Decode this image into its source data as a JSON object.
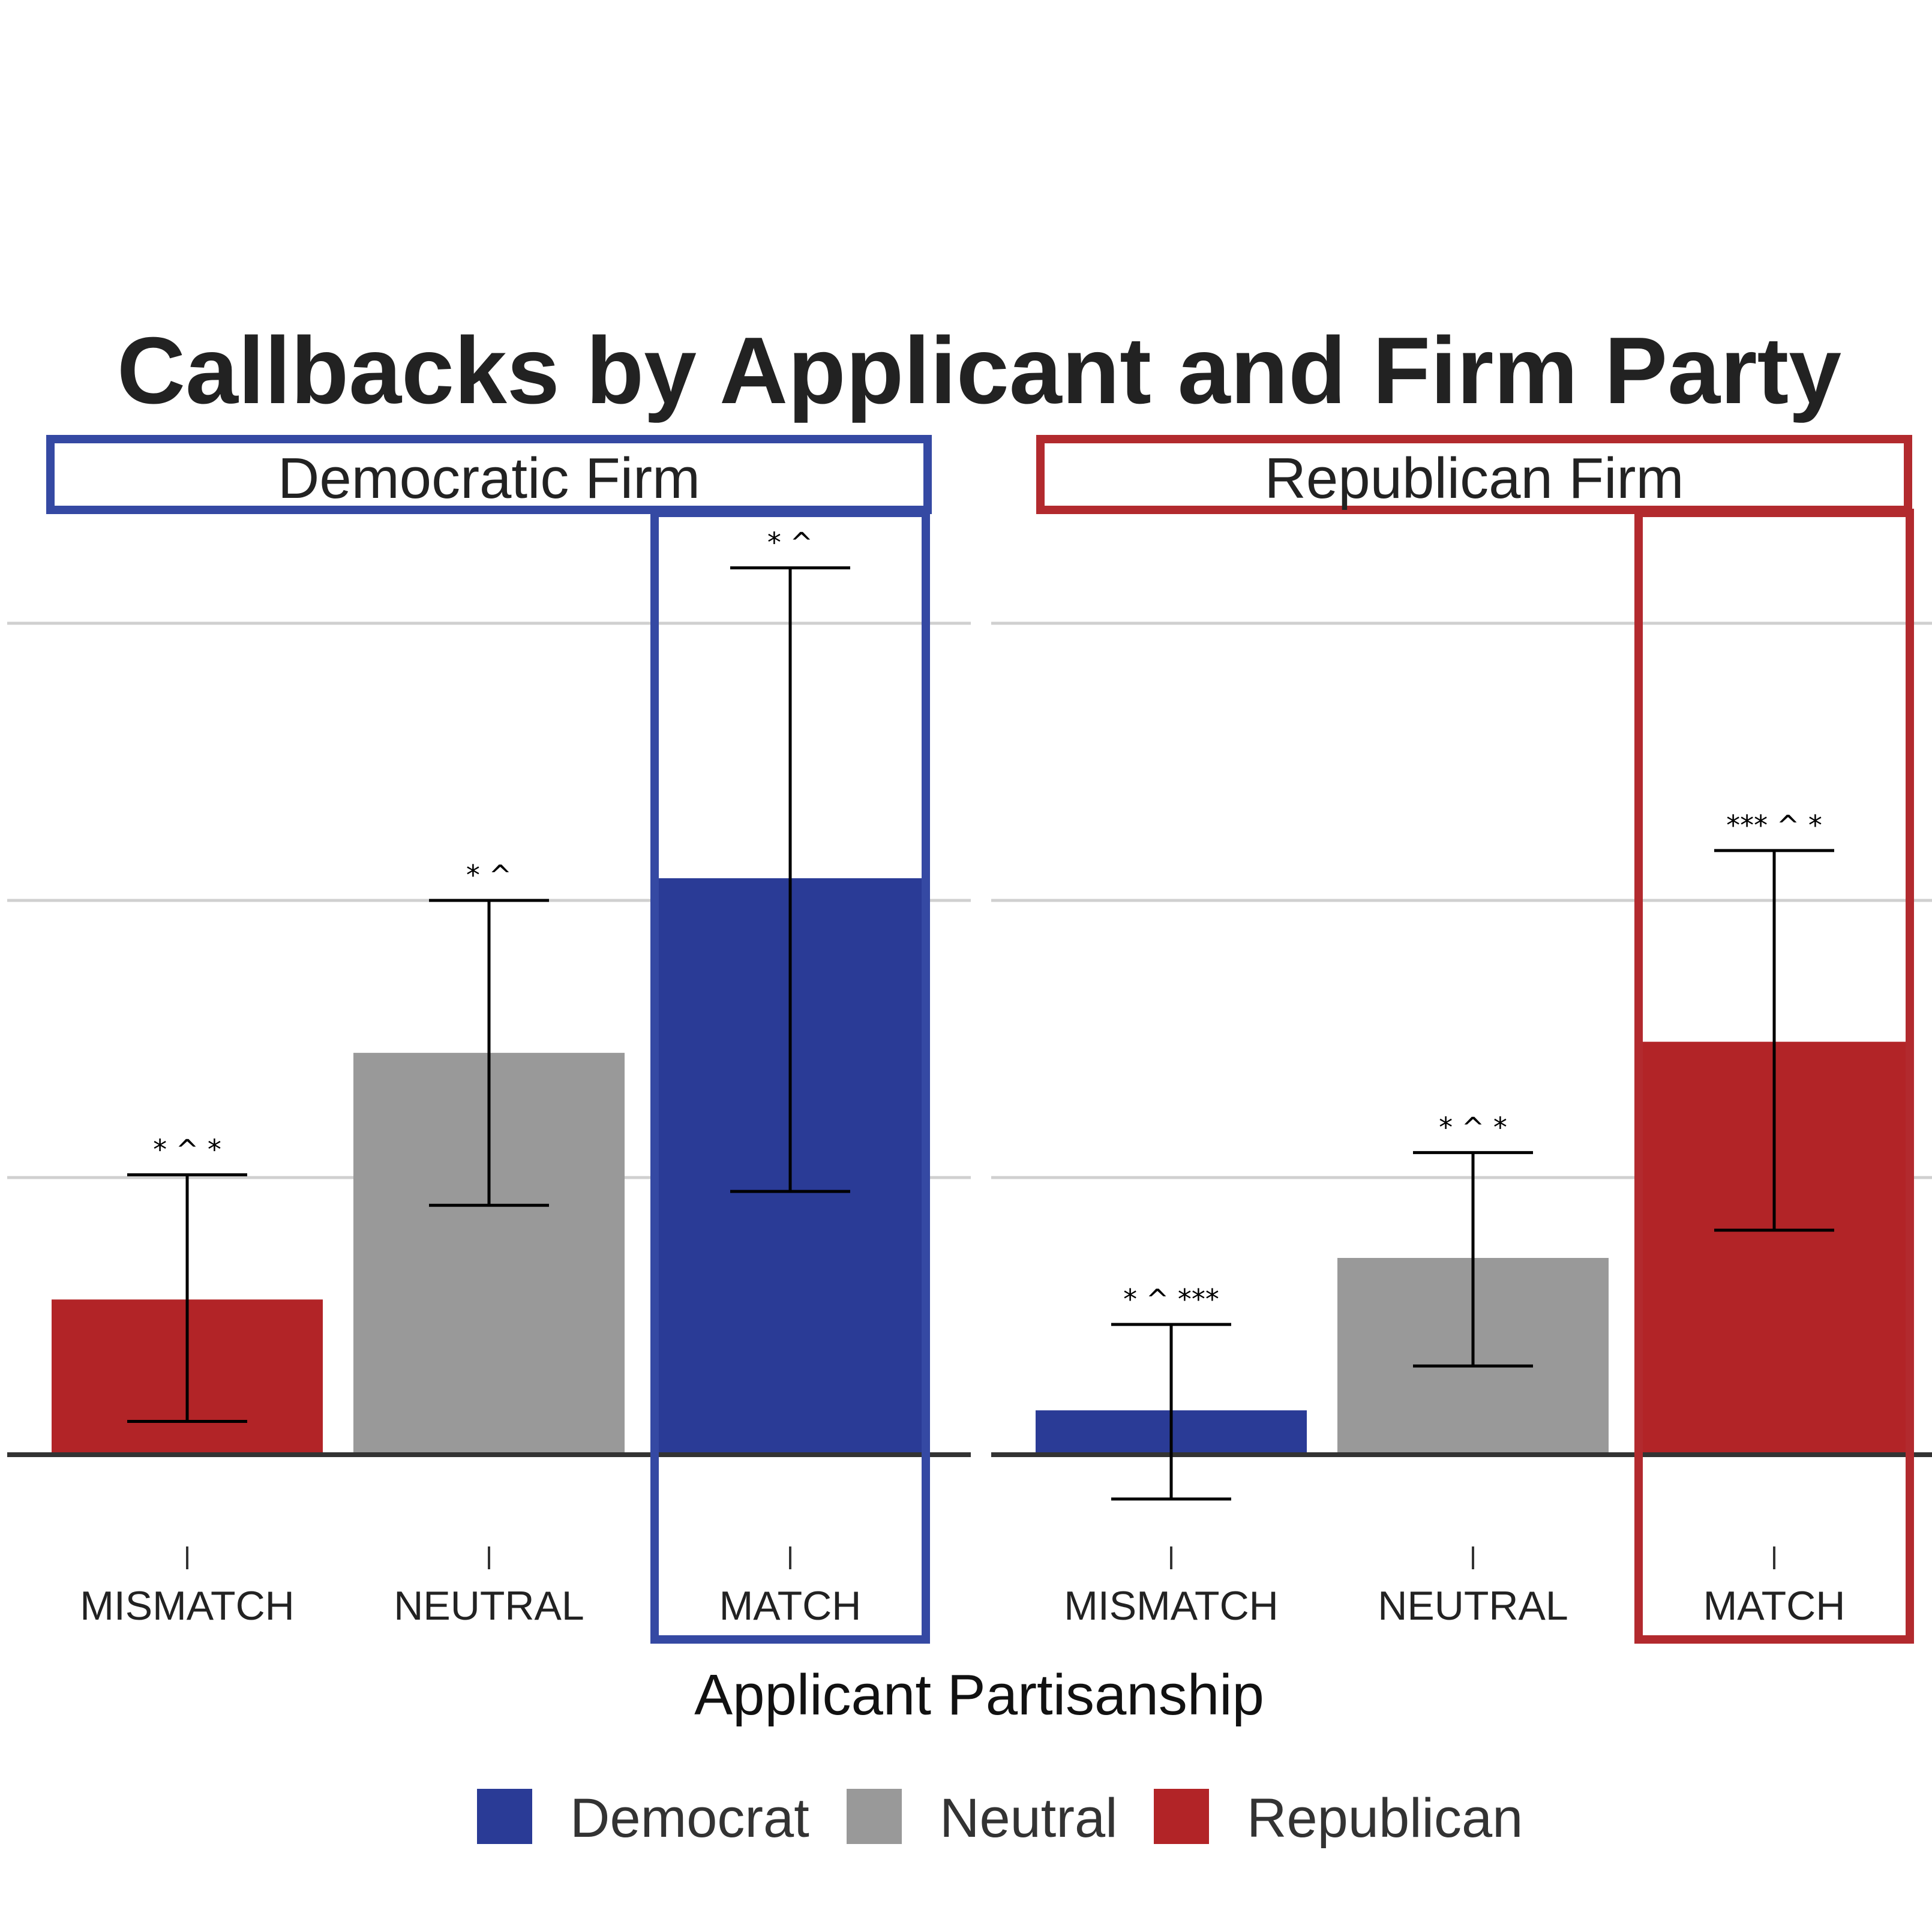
{
  "chart_data": {
    "type": "bar",
    "title": "Callbacks by Applicant and Firm Party",
    "xlabel": "Applicant Partisanship",
    "ylabel": "",
    "ylim": [
      0,
      3.3
    ],
    "grid": true,
    "legend_position": "bottom",
    "categories": [
      "MISMATCH",
      "NEUTRAL",
      "MATCH"
    ],
    "colors": {
      "Democrat": "#2a3b96",
      "Neutral": "#999999",
      "Republican": "#b22427",
      "democratic_box": "#3549a3",
      "republican_box": "#b22a2e"
    },
    "legend": [
      {
        "label": "Democrat",
        "color": "#2a3b96"
      },
      {
        "label": "Neutral",
        "color": "#999999"
      },
      {
        "label": "Republican",
        "color": "#b22427"
      }
    ],
    "panels": [
      {
        "label": "Democratic Firm",
        "box_color": "#3549a3",
        "bars": [
          {
            "category": "MISMATCH",
            "party": "Republican",
            "value": 0.56,
            "ci_low": 0.12,
            "ci_high": 1.01,
            "sig": "* ^ *"
          },
          {
            "category": "NEUTRAL",
            "party": "Neutral",
            "value": 1.45,
            "ci_low": 0.9,
            "ci_high": 2.0,
            "sig": "* ^"
          },
          {
            "category": "MATCH",
            "party": "Democrat",
            "value": 2.08,
            "ci_low": 0.95,
            "ci_high": 3.2,
            "sig": "* ^"
          }
        ]
      },
      {
        "label": "Republican Firm",
        "box_color": "#b22a2e",
        "bars": [
          {
            "category": "MISMATCH",
            "party": "Democrat",
            "value": 0.16,
            "ci_low": -0.16,
            "ci_high": 0.47,
            "sig": "* ^ ***"
          },
          {
            "category": "NEUTRAL",
            "party": "Neutral",
            "value": 0.71,
            "ci_low": 0.32,
            "ci_high": 1.09,
            "sig": "* ^ *"
          },
          {
            "category": "MATCH",
            "party": "Republican",
            "value": 1.49,
            "ci_low": 0.81,
            "ci_high": 2.18,
            "sig": "*** ^ *"
          }
        ]
      }
    ]
  }
}
